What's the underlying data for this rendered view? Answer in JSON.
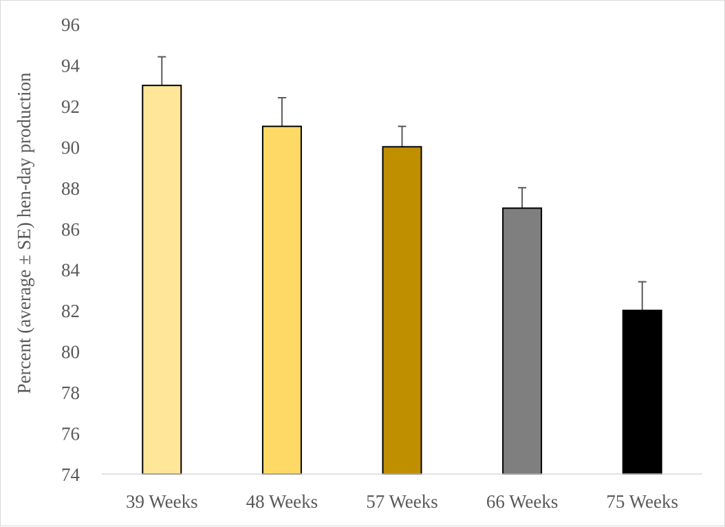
{
  "chart_data": {
    "type": "bar",
    "title": "",
    "xlabel": "",
    "ylabel": "Percent (average ± SE) hen-day production",
    "categories": [
      "39 Weeks",
      "48 Weeks",
      "57 Weeks",
      "66 Weeks",
      "75 Weeks"
    ],
    "values": [
      93,
      91,
      90,
      87,
      82
    ],
    "error_plus": [
      1.4,
      1.4,
      1.0,
      1.0,
      1.4
    ],
    "colors": [
      "#FFE699",
      "#FFD966",
      "#BF8F00",
      "#7F7F7F",
      "#000000"
    ],
    "ylim": [
      74,
      96
    ],
    "yticks": [
      74,
      76,
      78,
      80,
      82,
      84,
      86,
      88,
      90,
      92,
      94,
      96
    ],
    "grid": false,
    "legend": "none"
  }
}
